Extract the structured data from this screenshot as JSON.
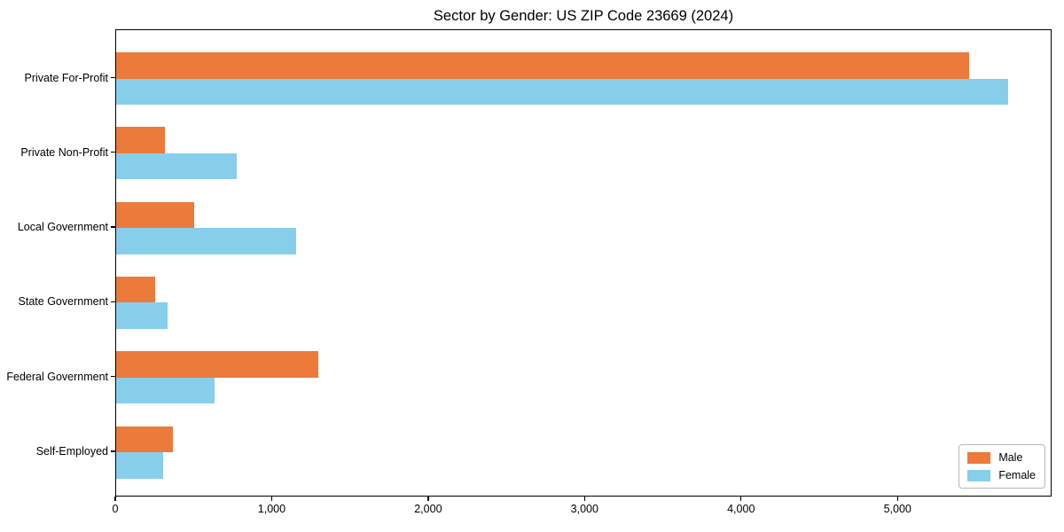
{
  "title": "Sector by Gender: US ZIP Code 23669 (2024)",
  "chart_data": {
    "type": "bar",
    "orientation": "horizontal",
    "title": "Sector by Gender: US ZIP Code 23669 (2024)",
    "categories": [
      "Private For-Profit",
      "Private Non-Profit",
      "Local Government",
      "State Government",
      "Federal Government",
      "Self-Employed"
    ],
    "series": [
      {
        "name": "Male",
        "color": "#EB7A3B",
        "values": [
          5450,
          310,
          500,
          250,
          1290,
          360
        ]
      },
      {
        "name": "Female",
        "color": "#87CEEB",
        "values": [
          5700,
          770,
          1150,
          330,
          630,
          300
        ]
      }
    ],
    "xlabel": "",
    "ylabel": "",
    "xlim": [
      0,
      5985
    ],
    "xticks": {
      "values": [
        0,
        1000,
        2000,
        3000,
        4000,
        5000
      ],
      "labels": [
        "0",
        "1,000",
        "2,000",
        "3,000",
        "4,000",
        "5,000"
      ]
    },
    "grid": false,
    "legend_position": "lower right"
  },
  "legend": {
    "items": [
      {
        "label": "Male"
      },
      {
        "label": "Female"
      }
    ]
  }
}
